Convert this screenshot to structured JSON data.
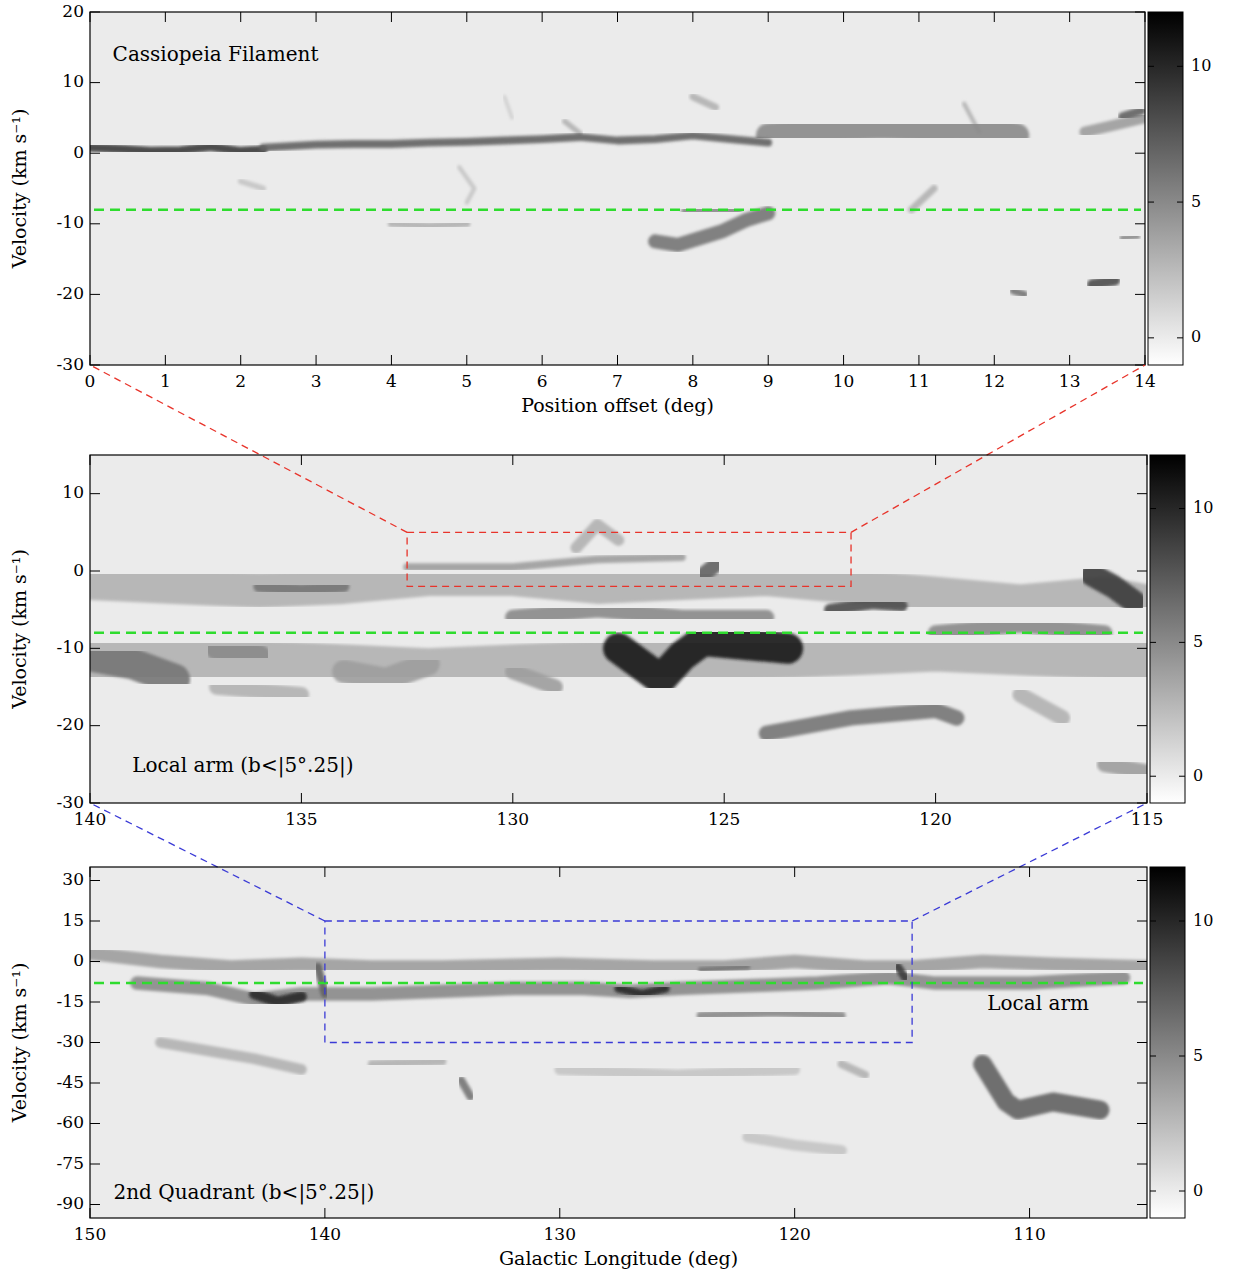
{
  "chart_data": [
    {
      "type": "heatmap",
      "xlabel": "Position offset (deg)",
      "ylabel": "Velocity (km s⁻¹)",
      "xlim": [
        0,
        14
      ],
      "xticks": [
        0,
        1,
        2,
        3,
        4,
        5,
        6,
        7,
        8,
        9,
        10,
        11,
        12,
        13,
        14
      ],
      "ylim": [
        -30,
        20
      ],
      "yticks": [
        -30,
        -20,
        -10,
        0,
        10,
        20
      ],
      "annotations": [
        {
          "text": "Cassiopeia Filament",
          "x": 0.3,
          "y": 13
        }
      ],
      "reference_line": {
        "y": -8,
        "color": "#2edc2e"
      },
      "colorbar": {
        "lim": [
          -1,
          12
        ],
        "ticks": [
          0,
          5,
          10
        ]
      },
      "features": [
        {
          "x": [
            4.9,
            5.1,
            5.0
          ],
          "y": [
            -2,
            -5,
            -7
          ],
          "intensity": 2,
          "dv": 0.6
        },
        {
          "x": [
            5.5,
            5.6
          ],
          "y": [
            8,
            5
          ],
          "intensity": 1.5,
          "dv": 0.5
        },
        {
          "x": [
            6.3,
            6.5
          ],
          "y": [
            4.5,
            2.8
          ],
          "intensity": 3,
          "dv": 0.8
        },
        {
          "x": [
            8.0,
            8.3
          ],
          "y": [
            8,
            6.5
          ],
          "intensity": 3,
          "dv": 1
        },
        {
          "x": [
            4.0,
            4.5,
            5.0
          ],
          "y": [
            -10,
            -10.3,
            -10
          ],
          "intensity": 3,
          "dv": 1
        },
        {
          "x": [
            10.9,
            11.2
          ],
          "y": [
            -8,
            -5
          ],
          "intensity": 3,
          "dv": 1
        },
        {
          "x": [
            2.0,
            2.3
          ],
          "y": [
            -4,
            -5
          ],
          "intensity": 2,
          "dv": 0.8
        },
        {
          "x": [
            13.2,
            13.6,
            14.0
          ],
          "y": [
            3,
            4,
            5
          ],
          "intensity": 4,
          "dv": 1.5
        },
        {
          "x": [
            11.6,
            11.8
          ],
          "y": [
            7,
            3
          ],
          "intensity": 3,
          "dv": 0.6
        },
        {
          "x": [
            9.0,
            9.5,
            10.0,
            10.5,
            11.0,
            11.5,
            12.0,
            12.3
          ],
          "y": [
            2.5,
            3,
            3.5,
            3.8,
            3.5,
            3.5,
            3.2,
            2.5
          ],
          "intensity": 5,
          "dv": 3.5
        },
        {
          "x": [
            0,
            0.4,
            0.8,
            1.2,
            1.6,
            2.0,
            2.3
          ],
          "y": [
            0.8,
            0.6,
            0.3,
            0.4,
            0.9,
            0.3,
            0.5
          ],
          "intensity": 9,
          "dv": 1.2
        },
        {
          "x": [
            2.3,
            3,
            3.5,
            4,
            4.5,
            5,
            5.5,
            6,
            6.5,
            7,
            7.5,
            8,
            8.5,
            9
          ],
          "y": [
            0.8,
            1.2,
            1.3,
            1.3,
            1.5,
            1.6,
            1.8,
            2,
            2.3,
            1.8,
            2,
            2.5,
            2,
            1.5
          ],
          "intensity": 7,
          "dv": 1.1
        },
        {
          "x": [
            7.5,
            7.8,
            8.1,
            8.4,
            8.7,
            9.0
          ],
          "y": [
            -12.5,
            -13,
            -12,
            -11,
            -9.5,
            -8.5
          ],
          "intensity": 6,
          "dv": 2
        },
        {
          "x": [
            12.25,
            12.4
          ],
          "y": [
            -19.5,
            -20
          ],
          "intensity": 6,
          "dv": 1
        },
        {
          "x": [
            13.3,
            13.6
          ],
          "y": [
            -18.6,
            -18
          ],
          "intensity": 8,
          "dv": 1.5
        },
        {
          "x": [
            13.7,
            13.9
          ],
          "y": [
            -12,
            -11.8
          ],
          "intensity": 5,
          "dv": 0.8
        },
        {
          "x": [
            13.7,
            13.95
          ],
          "y": [
            5.2,
            6
          ],
          "intensity": 7,
          "dv": 1.2
        },
        {
          "x": [
            7.9,
            8.6
          ],
          "y": [
            -8.2,
            -8
          ],
          "intensity": 5,
          "dv": 1.2
        }
      ]
    },
    {
      "type": "heatmap",
      "ylabel": "Velocity (km s⁻¹)",
      "xlim": [
        140,
        115
      ],
      "xticks": [
        140,
        135,
        130,
        125,
        120,
        115
      ],
      "ylim": [
        -30,
        15
      ],
      "yticks": [
        -30,
        -20,
        -10,
        0,
        10
      ],
      "annotations": [
        {
          "text": "Local arm (b<|5°.25|)",
          "x": 139,
          "y": -26
        }
      ],
      "reference_line": {
        "y": -8,
        "color": "#2edc2e"
      },
      "zoom_box": {
        "xlim": [
          132.5,
          122
        ],
        "ylim": [
          -2,
          5
        ],
        "color": "#e8332a"
      },
      "colorbar": {
        "lim": [
          -1,
          12
        ],
        "ticks": [
          0,
          5,
          10
        ]
      },
      "features": [
        {
          "x": [
            140,
            138,
            136,
            134,
            132,
            130,
            128,
            126,
            124,
            122,
            120,
            118,
            116,
            115
          ],
          "y": [
            -1.5,
            -2,
            -2.5,
            -2,
            -1,
            -1,
            -2,
            -1.5,
            -1,
            -2,
            -3,
            -4,
            -3,
            -4
          ],
          "intensity": 3,
          "dv": 4.5
        },
        {
          "x": [
            140,
            136,
            132,
            128,
            124,
            120,
            116,
            115
          ],
          "y": [
            -12,
            -12,
            -13,
            -12,
            -11,
            -10,
            -11,
            -12
          ],
          "intensity": 3,
          "dv": 6
        },
        {
          "x": [
            137,
            135
          ],
          "y": [
            -15,
            -16
          ],
          "intensity": 3,
          "dv": 2
        },
        {
          "x": [
            118,
            117
          ],
          "y": [
            -16,
            -19
          ],
          "intensity": 3,
          "dv": 2
        },
        {
          "x": [
            116,
            115
          ],
          "y": [
            -25,
            -26
          ],
          "intensity": 4,
          "dv": 2
        },
        {
          "x": [
            128.5,
            128,
            127.5
          ],
          "y": [
            3,
            6,
            4
          ],
          "intensity": 3,
          "dv": 1.5
        },
        {
          "x": [
            132.5,
            130,
            128,
            126
          ],
          "y": [
            0.5,
            0.5,
            1.5,
            1.8
          ],
          "intensity": 4,
          "dv": 1
        },
        {
          "x": [
            130,
            128,
            126,
            124
          ],
          "y": [
            -6,
            -5,
            -6,
            -6
          ],
          "intensity": 5,
          "dv": 2
        },
        {
          "x": [
            120,
            118,
            116
          ],
          "y": [
            -8,
            -7,
            -8
          ],
          "intensity": 5,
          "dv": 2
        },
        {
          "x": [
            140,
            139,
            138
          ],
          "y": [
            -11,
            -12,
            -14
          ],
          "intensity": 6,
          "dv": 4
        },
        {
          "x": [
            137,
            136
          ],
          "y": [
            -10,
            -11
          ],
          "intensity": 5,
          "dv": 3
        },
        {
          "x": [
            134,
            133,
            132
          ],
          "y": [
            -13,
            -14,
            -12
          ],
          "intensity": 4,
          "dv": 3
        },
        {
          "x": [
            130,
            129
          ],
          "y": [
            -13,
            -15
          ],
          "intensity": 4,
          "dv": 2
        },
        {
          "x": [
            136,
            135,
            134
          ],
          "y": [
            -2,
            -2.5,
            -2
          ],
          "intensity": 6,
          "dv": 1.5
        },
        {
          "x": [
            124,
            123,
            122,
            121,
            120,
            119.5
          ],
          "y": [
            -21,
            -20,
            -19,
            -18.5,
            -18,
            -19
          ],
          "intensity": 6,
          "dv": 2
        },
        {
          "x": [
            125.5,
            125.2
          ],
          "y": [
            -0.5,
            0.8
          ],
          "intensity": 7,
          "dv": 2
        },
        {
          "x": [
            122.5,
            121.5,
            120.8
          ],
          "y": [
            -5,
            -4.2,
            -4.5
          ],
          "intensity": 8,
          "dv": 1.5
        },
        {
          "x": [
            116.3,
            115.8,
            115.3
          ],
          "y": [
            -0.5,
            -2,
            -4
          ],
          "intensity": 9,
          "dv": 3
        },
        {
          "x": [
            127.5,
            127,
            126.5,
            126,
            125.5,
            124.5,
            123.5
          ],
          "y": [
            -10,
            -12,
            -14,
            -11,
            -9,
            -9.5,
            -10
          ],
          "intensity": 11,
          "dv": 4
        }
      ]
    },
    {
      "type": "heatmap",
      "xlabel": "Galactic Longitude (deg)",
      "ylabel": "Velocity (km s⁻¹)",
      "xlim": [
        150,
        105
      ],
      "xticks": [
        150,
        140,
        130,
        120,
        110
      ],
      "ylim": [
        -95,
        35
      ],
      "yticks": [
        -90,
        -75,
        -60,
        -45,
        -30,
        -15,
        0,
        15,
        30
      ],
      "annotations": [
        {
          "text": "2nd Quadrant (b<|5°.25|)",
          "x": 149,
          "y": -88
        },
        {
          "text": "Local arm",
          "x": 111.8,
          "y": -18
        }
      ],
      "reference_line": {
        "y": -8,
        "color": "#2edc2e"
      },
      "zoom_box": {
        "xlim": [
          140,
          115
        ],
        "ylim": [
          -30,
          15
        ],
        "color": "#3a3ad6"
      },
      "colorbar": {
        "lim": [
          -1,
          12
        ],
        "ticks": [
          0,
          5,
          10
        ]
      },
      "features": [
        {
          "x": [
            150,
            147,
            144,
            141,
            138,
            135,
            130,
            126,
            123,
            120,
            117,
            115,
            112,
            109,
            105
          ],
          "y": [
            3,
            0,
            -2,
            -1,
            -2,
            -2,
            -1,
            -2,
            -2,
            0,
            -2,
            -2,
            0,
            -1,
            -2
          ],
          "intensity": 4,
          "dv": 5
        },
        {
          "x": [
            148,
            145,
            143,
            141,
            138,
            135,
            132,
            129,
            127,
            125,
            122,
            119,
            116,
            114,
            110,
            106
          ],
          "y": [
            -8,
            -10,
            -14,
            -12,
            -12,
            -11,
            -10,
            -10,
            -11,
            -10,
            -9,
            -8,
            -6,
            -8,
            -8,
            -6
          ],
          "intensity": 5,
          "dv": 5
        },
        {
          "x": [
            147,
            145,
            143,
            141
          ],
          "y": [
            -30,
            -33,
            -36,
            -40
          ],
          "intensity": 3,
          "dv": 4
        },
        {
          "x": [
            138,
            135
          ],
          "y": [
            -38,
            -37
          ],
          "intensity": 3,
          "dv": 3
        },
        {
          "x": [
            130,
            125,
            120
          ],
          "y": [
            -40,
            -42,
            -40
          ],
          "intensity": 2,
          "dv": 4
        },
        {
          "x": [
            118,
            117
          ],
          "y": [
            -38,
            -42
          ],
          "intensity": 3,
          "dv": 3
        },
        {
          "x": [
            122,
            120,
            118
          ],
          "y": [
            -65,
            -68,
            -70
          ],
          "intensity": 2,
          "dv": 4
        },
        {
          "x": [
            124,
            121,
            118
          ],
          "y": [
            -20,
            -19,
            -20
          ],
          "intensity": 5,
          "dv": 3
        },
        {
          "x": [
            134.2,
            133.8
          ],
          "y": [
            -44,
            -50
          ],
          "intensity": 6,
          "dv": 3
        },
        {
          "x": [
            112,
            111.5,
            111,
            110.5,
            109,
            107
          ],
          "y": [
            -38,
            -45,
            -52,
            -55,
            -52,
            -55
          ],
          "intensity": 7,
          "dv": 7
        },
        {
          "x": [
            140.3,
            140
          ],
          "y": [
            -2,
            -12
          ],
          "intensity": 7,
          "dv": 3
        },
        {
          "x": [
            143,
            142,
            141
          ],
          "y": [
            -12,
            -15,
            -13
          ],
          "intensity": 10,
          "dv": 4
        },
        {
          "x": [
            127.5,
            126.5,
            125.5
          ],
          "y": [
            -10,
            -12,
            -10
          ],
          "intensity": 10,
          "dv": 3
        },
        {
          "x": [
            115.6,
            115.3
          ],
          "y": [
            -2,
            -6
          ],
          "intensity": 9,
          "dv": 3
        },
        {
          "x": [
            124,
            122
          ],
          "y": [
            -3,
            -2
          ],
          "intensity": 6,
          "dv": 2
        }
      ]
    }
  ]
}
